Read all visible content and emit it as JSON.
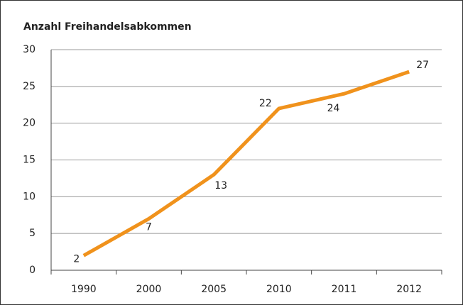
{
  "chart_data": {
    "type": "line",
    "title": "Anzahl Freihandelsabkommen",
    "categories": [
      "1990",
      "2000",
      "2005",
      "2010",
      "2011",
      "2012"
    ],
    "values": [
      2,
      7,
      13,
      22,
      24,
      27
    ],
    "color": "#f0921c",
    "ylim": [
      0,
      30
    ],
    "yticks": [
      0,
      5,
      10,
      15,
      20,
      25,
      30
    ],
    "grid": true
  }
}
